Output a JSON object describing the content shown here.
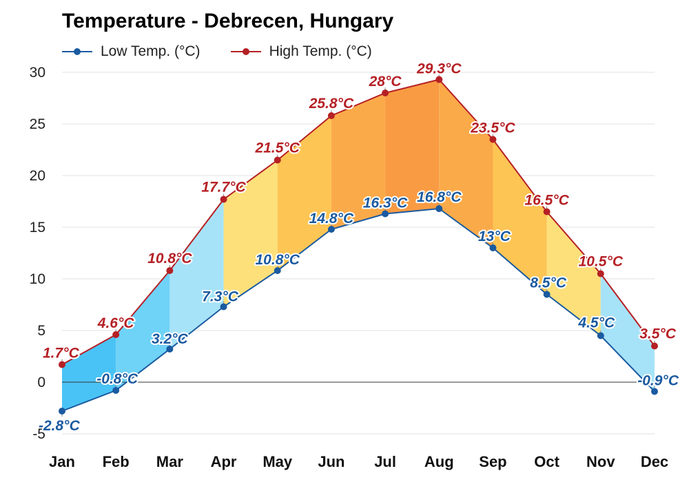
{
  "title": "Temperature - Debrecen, Hungary",
  "colors": {
    "low": "#1a5aa0",
    "high": "#b52025",
    "grid": "#e2e2e2",
    "zero_line": "#333333",
    "band_fills": [
      "#49c3f5",
      "#6fd2f7",
      "#a7e3f8",
      "#fde07a",
      "#fdc554",
      "#fbaa49",
      "#f99b43",
      "#fbaa49",
      "#fdc554",
      "#fde07a",
      "#a7e3f8",
      "#49c3f5"
    ]
  },
  "chart_data": {
    "type": "line",
    "title": "Temperature - Debrecen, Hungary",
    "xlabel": "",
    "ylabel": "",
    "categories": [
      "Jan",
      "Feb",
      "Mar",
      "Apr",
      "May",
      "Jun",
      "Jul",
      "Aug",
      "Sep",
      "Oct",
      "Nov",
      "Dec"
    ],
    "ylim": [
      -5,
      30
    ],
    "yticks": [
      -5,
      0,
      5,
      10,
      15,
      20,
      25,
      30
    ],
    "grid": true,
    "legend_position": "top-left",
    "series": [
      {
        "name": "Low Temp. (°C)",
        "values": [
          -2.8,
          -0.8,
          3.2,
          7.3,
          10.8,
          14.8,
          16.3,
          16.8,
          13,
          8.5,
          4.5,
          -0.9
        ],
        "labels": [
          "-2.8°C",
          "-0.8°C",
          "3.2°C",
          "7.3°C",
          "10.8°C",
          "14.8°C",
          "16.3°C",
          "16.8°C",
          "13°C",
          "8.5°C",
          "4.5°C",
          "-0.9°C"
        ]
      },
      {
        "name": "High Temp. (°C)",
        "values": [
          1.7,
          4.6,
          10.8,
          17.7,
          21.5,
          25.8,
          28,
          29.3,
          23.5,
          16.5,
          10.5,
          3.5
        ],
        "labels": [
          "1.7°C",
          "4.6°C",
          "10.8°C",
          "17.7°C",
          "21.5°C",
          "25.8°C",
          "28°C",
          "29.3°C",
          "23.5°C",
          "16.5°C",
          "10.5°C",
          "3.5°C"
        ]
      }
    ]
  }
}
